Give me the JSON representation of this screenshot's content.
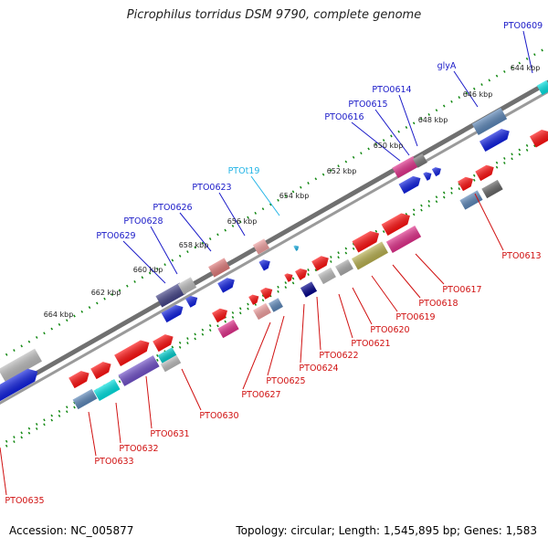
{
  "title": "Picrophilus torridus DSM 9790, complete genome",
  "footer": {
    "accession": "Accession: NC_005877",
    "summary": "Topology: circular; Length: 1,545,895 bp; Genes: 1,583"
  },
  "colors": {
    "backbone": "#707070",
    "tick": "#118811",
    "label_top": "#1a1ac8",
    "label_trna": "#22b4e6",
    "label_bottom": "#d01010"
  },
  "scale_labels": [
    "644 kbp",
    "646 kbp",
    "648 kbp",
    "650 kbp",
    "652 kbp",
    "654 kbp",
    "656 kbp",
    "658 kbp",
    "660 kbp",
    "662 kbp",
    "664 kbp"
  ],
  "top_labels": [
    "PTO0609",
    "glyA",
    "PTO0614",
    "PTO0615",
    "PTO0616",
    "PTOt19",
    "PTO0623",
    "PTO0626",
    "PTO0628",
    "PTO0629"
  ],
  "bottom_labels": [
    "PTO0613",
    "PTO0617",
    "PTO0618",
    "PTO0619",
    "PTO0620",
    "PTO0621",
    "PTO0622",
    "PTO0624",
    "PTO0625",
    "PTO0627",
    "PTO0630",
    "PTO0631",
    "PTO0632",
    "PTO0633",
    "PTO0635"
  ]
}
